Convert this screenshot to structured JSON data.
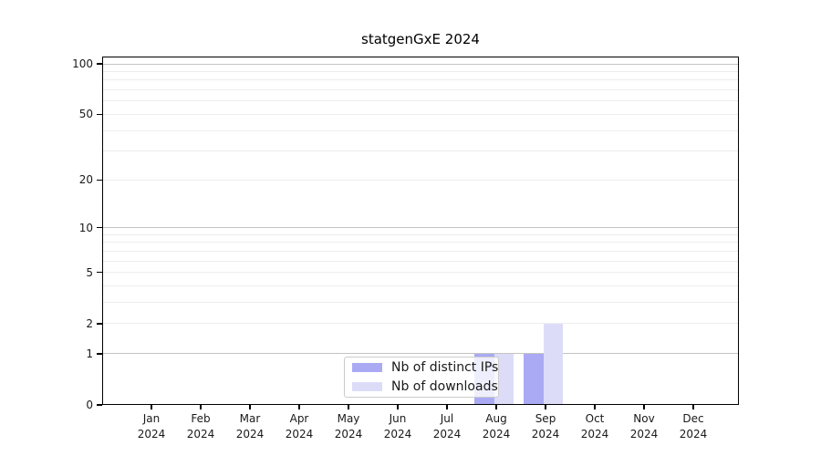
{
  "title": "statgenGxE 2024",
  "colors": {
    "distinct_ips": "#aaaaf4",
    "downloads": "#dcdcf9",
    "major_grid": "#c4c4c4",
    "minor_grid": "#ededed",
    "axis": "#000000"
  },
  "legend": {
    "items": [
      {
        "label": "Nb of distinct IPs"
      },
      {
        "label": "Nb of downloads"
      }
    ]
  },
  "chart_data": {
    "type": "bar",
    "title": "statgenGxE 2024",
    "categories": [
      "Jan 2024",
      "Feb 2024",
      "Mar 2024",
      "Apr 2024",
      "May 2024",
      "Jun 2024",
      "Jul 2024",
      "Aug 2024",
      "Sep 2024",
      "Oct 2024",
      "Nov 2024",
      "Dec 2024"
    ],
    "series": [
      {
        "name": "Nb of distinct IPs",
        "color": "#aaaaf4",
        "values": [
          0,
          0,
          0,
          0,
          0,
          0,
          0,
          1,
          1,
          0,
          0,
          0
        ]
      },
      {
        "name": "Nb of downloads",
        "color": "#dcdcf9",
        "values": [
          0,
          0,
          0,
          0,
          0,
          0,
          0,
          1,
          2,
          0,
          0,
          0
        ]
      }
    ],
    "xlabel": "",
    "ylabel": "",
    "yscale": "log1p",
    "ylim": [
      0,
      100
    ],
    "yticks": [
      0,
      1,
      2,
      5,
      10,
      20,
      50,
      100
    ],
    "major_gridlines": [
      1,
      10,
      100
    ],
    "minor_gridlines": [
      2,
      3,
      4,
      5,
      6,
      7,
      8,
      9,
      20,
      30,
      40,
      50,
      60,
      70,
      80,
      90
    ],
    "grid": true,
    "legend_position": "lower-center-inside"
  }
}
